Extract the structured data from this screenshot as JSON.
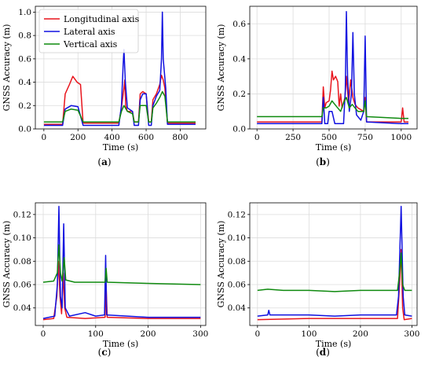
{
  "colors": {
    "Longitudinal axis": "#e8141c",
    "Lateral axis": "#1010e0",
    "Vertical axis": "#0f8a0f"
  },
  "chart_data": [
    {
      "type": "line",
      "caption": "(a)",
      "xlabel": "Time (s)",
      "ylabel": "GNSS Accuracy (m)",
      "xlim": [
        -50,
        950
      ],
      "ylim": [
        0,
        1.05
      ],
      "xticks": [
        0,
        200,
        400,
        600,
        800
      ],
      "yticks": [
        0.0,
        0.2,
        0.4,
        0.6,
        0.8,
        1.0
      ],
      "yticklabels": [
        "0.0",
        "0.2",
        "0.4",
        "0.6",
        "0.8",
        "1.0"
      ],
      "legend": {
        "placement": "top-left",
        "entries": [
          "Longitudinal axis",
          "Lateral axis",
          "Vertical axis"
        ]
      },
      "grid": true,
      "series": [
        {
          "name": "Longitudinal axis",
          "points": [
            [
              0,
              0.04
            ],
            [
              110,
              0.04
            ],
            [
              125,
              0.3
            ],
            [
              150,
              0.38
            ],
            [
              170,
              0.45
            ],
            [
              195,
              0.4
            ],
            [
              215,
              0.38
            ],
            [
              230,
              0.05
            ],
            [
              440,
              0.05
            ],
            [
              455,
              0.18
            ],
            [
              470,
              0.35
            ],
            [
              475,
              0.42
            ],
            [
              480,
              0.2
            ],
            [
              490,
              0.15
            ],
            [
              520,
              0.15
            ],
            [
              530,
              0.06
            ],
            [
              555,
              0.06
            ],
            [
              565,
              0.3
            ],
            [
              580,
              0.32
            ],
            [
              600,
              0.3
            ],
            [
              615,
              0.06
            ],
            [
              630,
              0.06
            ],
            [
              640,
              0.25
            ],
            [
              660,
              0.3
            ],
            [
              680,
              0.38
            ],
            [
              690,
              0.46
            ],
            [
              700,
              0.42
            ],
            [
              710,
              0.35
            ],
            [
              725,
              0.05
            ],
            [
              890,
              0.05
            ]
          ]
        },
        {
          "name": "Lateral axis",
          "points": [
            [
              0,
              0.03
            ],
            [
              110,
              0.03
            ],
            [
              125,
              0.17
            ],
            [
              160,
              0.2
            ],
            [
              200,
              0.19
            ],
            [
              230,
              0.03
            ],
            [
              440,
              0.03
            ],
            [
              455,
              0.2
            ],
            [
              465,
              0.55
            ],
            [
              470,
              0.68
            ],
            [
              478,
              0.4
            ],
            [
              490,
              0.18
            ],
            [
              520,
              0.15
            ],
            [
              530,
              0.03
            ],
            [
              555,
              0.03
            ],
            [
              565,
              0.25
            ],
            [
              580,
              0.3
            ],
            [
              600,
              0.3
            ],
            [
              615,
              0.03
            ],
            [
              630,
              0.03
            ],
            [
              640,
              0.2
            ],
            [
              660,
              0.28
            ],
            [
              680,
              0.33
            ],
            [
              690,
              0.6
            ],
            [
              695,
              1.0
            ],
            [
              700,
              0.6
            ],
            [
              715,
              0.35
            ],
            [
              725,
              0.04
            ],
            [
              890,
              0.04
            ]
          ]
        },
        {
          "name": "Vertical axis",
          "points": [
            [
              0,
              0.06
            ],
            [
              110,
              0.06
            ],
            [
              125,
              0.15
            ],
            [
              160,
              0.17
            ],
            [
              200,
              0.16
            ],
            [
              230,
              0.06
            ],
            [
              440,
              0.06
            ],
            [
              455,
              0.15
            ],
            [
              470,
              0.2
            ],
            [
              490,
              0.15
            ],
            [
              520,
              0.13
            ],
            [
              530,
              0.06
            ],
            [
              555,
              0.06
            ],
            [
              565,
              0.2
            ],
            [
              600,
              0.2
            ],
            [
              615,
              0.06
            ],
            [
              630,
              0.06
            ],
            [
              640,
              0.18
            ],
            [
              660,
              0.22
            ],
            [
              680,
              0.27
            ],
            [
              695,
              0.32
            ],
            [
              710,
              0.28
            ],
            [
              725,
              0.06
            ],
            [
              890,
              0.06
            ]
          ]
        }
      ]
    },
    {
      "type": "line",
      "caption": "(b)",
      "xlabel": "Time (s)",
      "ylabel": "GNSS Accuracy (m)",
      "xlim": [
        -50,
        1110
      ],
      "ylim": [
        0,
        0.7
      ],
      "xticks": [
        0,
        250,
        500,
        750,
        1000
      ],
      "yticks": [
        0.0,
        0.2,
        0.4,
        0.6
      ],
      "yticklabels": [
        "0.0",
        "0.2",
        "0.4",
        "0.6"
      ],
      "grid": true,
      "series": [
        {
          "name": "Longitudinal axis",
          "points": [
            [
              0,
              0.04
            ],
            [
              450,
              0.04
            ],
            [
              460,
              0.24
            ],
            [
              470,
              0.12
            ],
            [
              480,
              0.15
            ],
            [
              500,
              0.16
            ],
            [
              510,
              0.22
            ],
            [
              520,
              0.33
            ],
            [
              530,
              0.28
            ],
            [
              545,
              0.3
            ],
            [
              560,
              0.27
            ],
            [
              570,
              0.13
            ],
            [
              580,
              0.2
            ],
            [
              590,
              0.12
            ],
            [
              610,
              0.18
            ],
            [
              620,
              0.3
            ],
            [
              635,
              0.15
            ],
            [
              650,
              0.28
            ],
            [
              665,
              0.18
            ],
            [
              680,
              0.14
            ],
            [
              700,
              0.12
            ],
            [
              740,
              0.1
            ],
            [
              750,
              0.18
            ],
            [
              760,
              0.04
            ],
            [
              1000,
              0.04
            ],
            [
              1010,
              0.12
            ],
            [
              1020,
              0.04
            ],
            [
              1050,
              0.04
            ]
          ]
        },
        {
          "name": "Lateral axis",
          "points": [
            [
              0,
              0.03
            ],
            [
              450,
              0.03
            ],
            [
              460,
              0.18
            ],
            [
              470,
              0.03
            ],
            [
              490,
              0.03
            ],
            [
              500,
              0.1
            ],
            [
              520,
              0.1
            ],
            [
              540,
              0.03
            ],
            [
              560,
              0.03
            ],
            [
              580,
              0.03
            ],
            [
              600,
              0.03
            ],
            [
              612,
              0.22
            ],
            [
              620,
              0.67
            ],
            [
              628,
              0.3
            ],
            [
              640,
              0.1
            ],
            [
              655,
              0.2
            ],
            [
              665,
              0.55
            ],
            [
              675,
              0.2
            ],
            [
              690,
              0.08
            ],
            [
              720,
              0.05
            ],
            [
              740,
              0.1
            ],
            [
              750,
              0.53
            ],
            [
              760,
              0.04
            ],
            [
              1000,
              0.03
            ],
            [
              1050,
              0.03
            ]
          ]
        },
        {
          "name": "Vertical axis",
          "points": [
            [
              0,
              0.07
            ],
            [
              450,
              0.07
            ],
            [
              460,
              0.12
            ],
            [
              480,
              0.12
            ],
            [
              500,
              0.13
            ],
            [
              520,
              0.16
            ],
            [
              540,
              0.14
            ],
            [
              560,
              0.12
            ],
            [
              580,
              0.1
            ],
            [
              600,
              0.15
            ],
            [
              620,
              0.18
            ],
            [
              640,
              0.12
            ],
            [
              660,
              0.14
            ],
            [
              680,
              0.12
            ],
            [
              700,
              0.1
            ],
            [
              740,
              0.1
            ],
            [
              750,
              0.16
            ],
            [
              760,
              0.07
            ],
            [
              1000,
              0.06
            ],
            [
              1050,
              0.06
            ]
          ]
        }
      ]
    },
    {
      "type": "line",
      "caption": "(c)",
      "xlabel": "Time (s)",
      "ylabel": "GNSS Accuracy (m)",
      "xlim": [
        -15,
        310
      ],
      "ylim": [
        0.025,
        0.13
      ],
      "xticks": [
        0,
        100,
        200,
        300
      ],
      "yticks": [
        0.04,
        0.06,
        0.08,
        0.1,
        0.12
      ],
      "yticklabels": [
        "0.04",
        "0.06",
        "0.08",
        "0.10",
        "0.12"
      ],
      "grid": true,
      "series": [
        {
          "name": "Longitudinal axis",
          "points": [
            [
              0,
              0.03
            ],
            [
              20,
              0.031
            ],
            [
              26,
              0.05
            ],
            [
              29,
              0.08
            ],
            [
              32,
              0.05
            ],
            [
              35,
              0.035
            ],
            [
              38,
              0.07
            ],
            [
              41,
              0.04
            ],
            [
              45,
              0.032
            ],
            [
              80,
              0.031
            ],
            [
              118,
              0.032
            ],
            [
              120,
              0.06
            ],
            [
              122,
              0.032
            ],
            [
              200,
              0.031
            ],
            [
              300,
              0.031
            ]
          ]
        },
        {
          "name": "Lateral axis",
          "points": [
            [
              0,
              0.031
            ],
            [
              22,
              0.033
            ],
            [
              27,
              0.06
            ],
            [
              30,
              0.127
            ],
            [
              33,
              0.05
            ],
            [
              36,
              0.04
            ],
            [
              39,
              0.112
            ],
            [
              42,
              0.04
            ],
            [
              50,
              0.033
            ],
            [
              80,
              0.036
            ],
            [
              100,
              0.033
            ],
            [
              117,
              0.034
            ],
            [
              119,
              0.085
            ],
            [
              121,
              0.034
            ],
            [
              200,
              0.032
            ],
            [
              300,
              0.032
            ]
          ]
        },
        {
          "name": "Vertical axis",
          "points": [
            [
              0,
              0.062
            ],
            [
              20,
              0.063
            ],
            [
              27,
              0.07
            ],
            [
              30,
              0.094
            ],
            [
              33,
              0.07
            ],
            [
              36,
              0.063
            ],
            [
              40,
              0.083
            ],
            [
              43,
              0.064
            ],
            [
              60,
              0.062
            ],
            [
              100,
              0.062
            ],
            [
              118,
              0.062
            ],
            [
              120,
              0.074
            ],
            [
              122,
              0.062
            ],
            [
              200,
              0.061
            ],
            [
              300,
              0.06
            ]
          ]
        }
      ]
    },
    {
      "type": "line",
      "caption": "(d)",
      "xlabel": "Time (s)",
      "ylabel": "GNSS Accuracy (m)",
      "xlim": [
        -15,
        310
      ],
      "ylim": [
        0.025,
        0.13
      ],
      "xticks": [
        0,
        100,
        200,
        300
      ],
      "yticks": [
        0.04,
        0.06,
        0.08,
        0.1,
        0.12
      ],
      "yticklabels": [
        "0.04",
        "0.06",
        "0.08",
        "0.10",
        "0.12"
      ],
      "grid": true,
      "series": [
        {
          "name": "Longitudinal axis",
          "points": [
            [
              0,
              0.03
            ],
            [
              100,
              0.031
            ],
            [
              200,
              0.031
            ],
            [
              272,
              0.031
            ],
            [
              276,
              0.06
            ],
            [
              279,
              0.09
            ],
            [
              282,
              0.04
            ],
            [
              285,
              0.03
            ],
            [
              300,
              0.031
            ]
          ]
        },
        {
          "name": "Lateral axis",
          "points": [
            [
              0,
              0.033
            ],
            [
              20,
              0.034
            ],
            [
              22,
              0.038
            ],
            [
              24,
              0.034
            ],
            [
              100,
              0.034
            ],
            [
              150,
              0.033
            ],
            [
              200,
              0.034
            ],
            [
              270,
              0.034
            ],
            [
              274,
              0.05
            ],
            [
              279,
              0.127
            ],
            [
              283,
              0.05
            ],
            [
              286,
              0.034
            ],
            [
              300,
              0.033
            ]
          ]
        },
        {
          "name": "Vertical axis",
          "points": [
            [
              0,
              0.055
            ],
            [
              20,
              0.056
            ],
            [
              50,
              0.055
            ],
            [
              100,
              0.055
            ],
            [
              150,
              0.054
            ],
            [
              200,
              0.055
            ],
            [
              272,
              0.055
            ],
            [
              276,
              0.07
            ],
            [
              279,
              0.087
            ],
            [
              282,
              0.06
            ],
            [
              286,
              0.055
            ],
            [
              300,
              0.055
            ]
          ]
        }
      ]
    }
  ]
}
